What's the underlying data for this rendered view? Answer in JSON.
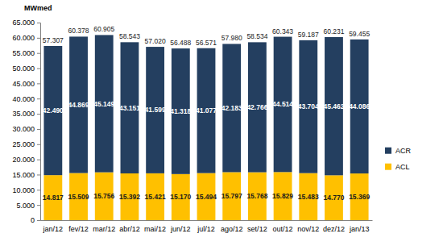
{
  "chart_data": {
    "type": "bar",
    "stacked": true,
    "data_labels": true,
    "grid": false,
    "legend": "right",
    "y_label": "MWmed",
    "categories": [
      "jan/12",
      "fev/12",
      "mar/12",
      "abr/12",
      "mai/12",
      "jun/12",
      "jul/12",
      "ago/12",
      "set/12",
      "out/12",
      "nov/12",
      "dez/12",
      "jan/13"
    ],
    "series": [
      {
        "name": "ACL",
        "color": "#ffc000",
        "values": [
          14817,
          15509,
          15756,
          15392,
          15421,
          15170,
          15494,
          15797,
          15768,
          15829,
          15483,
          14770,
          15369
        ],
        "value_labels": [
          "14.817",
          "15.509",
          "15.756",
          "15.392",
          "15.421",
          "15.170",
          "15.494",
          "15.797",
          "15.768",
          "15.829",
          "15.483",
          "14.770",
          "15.369"
        ]
      },
      {
        "name": "ACR",
        "color": "#243f60",
        "values": [
          42490,
          44869,
          45149,
          43151,
          41599,
          41318,
          41077,
          42183,
          42766,
          44514,
          43704,
          45462,
          44086
        ],
        "value_labels": [
          "42.490",
          "44.869",
          "45.149",
          "43.151",
          "41.599",
          "41.318",
          "41.077",
          "42.183",
          "42.766",
          "44.514",
          "43.704",
          "45.462",
          "44.086"
        ]
      }
    ],
    "totals": {
      "values": [
        57307,
        60378,
        60905,
        58543,
        57020,
        56488,
        56571,
        57980,
        58534,
        60343,
        59187,
        60231,
        59455
      ],
      "value_labels": [
        "57.307",
        "60.378",
        "60.905",
        "58.543",
        "57.020",
        "56.488",
        "56.571",
        "57.980",
        "58.534",
        "60.343",
        "59.187",
        "60.231",
        "59.455"
      ]
    },
    "ylim": [
      0,
      65000
    ],
    "yticks": [
      0,
      {
        "value": 5000,
        "label": "5.000"
      },
      {
        "value": 10000,
        "label": "10.000"
      },
      {
        "value": 15000,
        "label": "15.000"
      },
      {
        "value": 20000,
        "label": "20.000"
      },
      {
        "value": 25000,
        "label": "25.000"
      },
      {
        "value": 30000,
        "label": "30.000"
      },
      {
        "value": 35000,
        "label": "35.000"
      },
      {
        "value": 40000,
        "label": "40.000"
      },
      {
        "value": 45000,
        "label": "45.000"
      },
      {
        "value": 50000,
        "label": "50.000"
      },
      {
        "value": 55000,
        "label": "55.000"
      },
      {
        "value": 60000,
        "label": "60.000"
      },
      {
        "value": 65000,
        "label": "65.000"
      }
    ]
  }
}
